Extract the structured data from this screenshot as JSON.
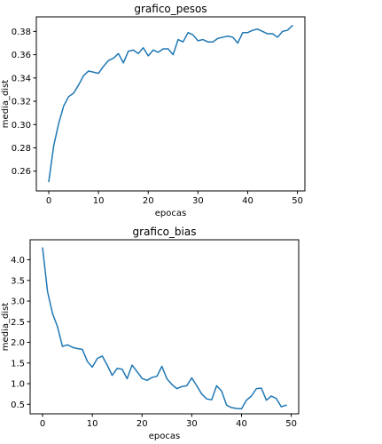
{
  "chart_data": [
    {
      "type": "line",
      "title": "grafico_pesos",
      "xlabel": "epocas",
      "ylabel": "media_dist",
      "xlim": [
        -2.5,
        51.5
      ],
      "ylim": [
        0.243,
        0.3925
      ],
      "xticks": [
        0,
        10,
        20,
        30,
        40,
        50
      ],
      "xtick_labels": [
        "0",
        "10",
        "20",
        "30",
        "40",
        "50"
      ],
      "yticks": [
        0.26,
        0.28,
        0.3,
        0.32,
        0.34,
        0.36,
        0.38
      ],
      "ytick_labels": [
        "0.26",
        "0.28",
        "0.30",
        "0.32",
        "0.34",
        "0.36",
        "0.38"
      ],
      "grid": false,
      "series": [
        {
          "color": "#1f77b4",
          "x": [
            0,
            1,
            2,
            3,
            4,
            5,
            6,
            7,
            8,
            9,
            10,
            11,
            12,
            13,
            14,
            15,
            16,
            17,
            18,
            19,
            20,
            21,
            22,
            23,
            24,
            25,
            26,
            27,
            28,
            29,
            30,
            31,
            32,
            33,
            34,
            35,
            36,
            37,
            38,
            39,
            40,
            41,
            42,
            43,
            44,
            45,
            46,
            47,
            48,
            49
          ],
          "values": [
            0.251,
            0.282,
            0.301,
            0.316,
            0.324,
            0.327,
            0.334,
            0.342,
            0.346,
            0.345,
            0.344,
            0.35,
            0.355,
            0.357,
            0.361,
            0.353,
            0.363,
            0.364,
            0.361,
            0.366,
            0.359,
            0.364,
            0.362,
            0.365,
            0.365,
            0.36,
            0.373,
            0.371,
            0.379,
            0.377,
            0.372,
            0.373,
            0.371,
            0.371,
            0.374,
            0.375,
            0.376,
            0.375,
            0.37,
            0.379,
            0.379,
            0.381,
            0.382,
            0.38,
            0.378,
            0.378,
            0.375,
            0.38,
            0.381,
            0.385
          ]
        }
      ]
    },
    {
      "type": "line",
      "title": "grafico_bias",
      "xlabel": "epocas",
      "ylabel": "media_dist",
      "xlim": [
        -2.5,
        51.5
      ],
      "ylim": [
        0.27,
        4.485
      ],
      "xticks": [
        0,
        10,
        20,
        30,
        40,
        50
      ],
      "xtick_labels": [
        "0",
        "10",
        "20",
        "30",
        "40",
        "50"
      ],
      "yticks": [
        0.5,
        1.0,
        1.5,
        2.0,
        2.5,
        3.0,
        3.5,
        4.0
      ],
      "ytick_labels": [
        "0.5",
        "1.0",
        "1.5",
        "2.0",
        "2.5",
        "3.0",
        "3.5",
        "4.0"
      ],
      "grid": false,
      "series": [
        {
          "color": "#1f77b4",
          "x": [
            0,
            1,
            2,
            3,
            4,
            5,
            6,
            7,
            8,
            9,
            10,
            11,
            12,
            13,
            14,
            15,
            16,
            17,
            18,
            19,
            20,
            21,
            22,
            23,
            24,
            25,
            26,
            27,
            28,
            29,
            30,
            31,
            32,
            33,
            34,
            35,
            36,
            37,
            38,
            39,
            40,
            41,
            42,
            43,
            44,
            45,
            46,
            47,
            48,
            49
          ],
          "values": [
            4.29,
            3.23,
            2.7,
            2.38,
            1.9,
            1.94,
            1.88,
            1.85,
            1.83,
            1.54,
            1.4,
            1.61,
            1.67,
            1.45,
            1.2,
            1.37,
            1.35,
            1.12,
            1.45,
            1.29,
            1.13,
            1.08,
            1.15,
            1.18,
            1.42,
            1.12,
            0.98,
            0.88,
            0.93,
            0.95,
            1.14,
            0.95,
            0.75,
            0.63,
            0.61,
            0.95,
            0.82,
            0.48,
            0.42,
            0.4,
            0.39,
            0.6,
            0.7,
            0.88,
            0.89,
            0.6,
            0.7,
            0.64,
            0.44,
            0.48
          ]
        }
      ]
    }
  ]
}
